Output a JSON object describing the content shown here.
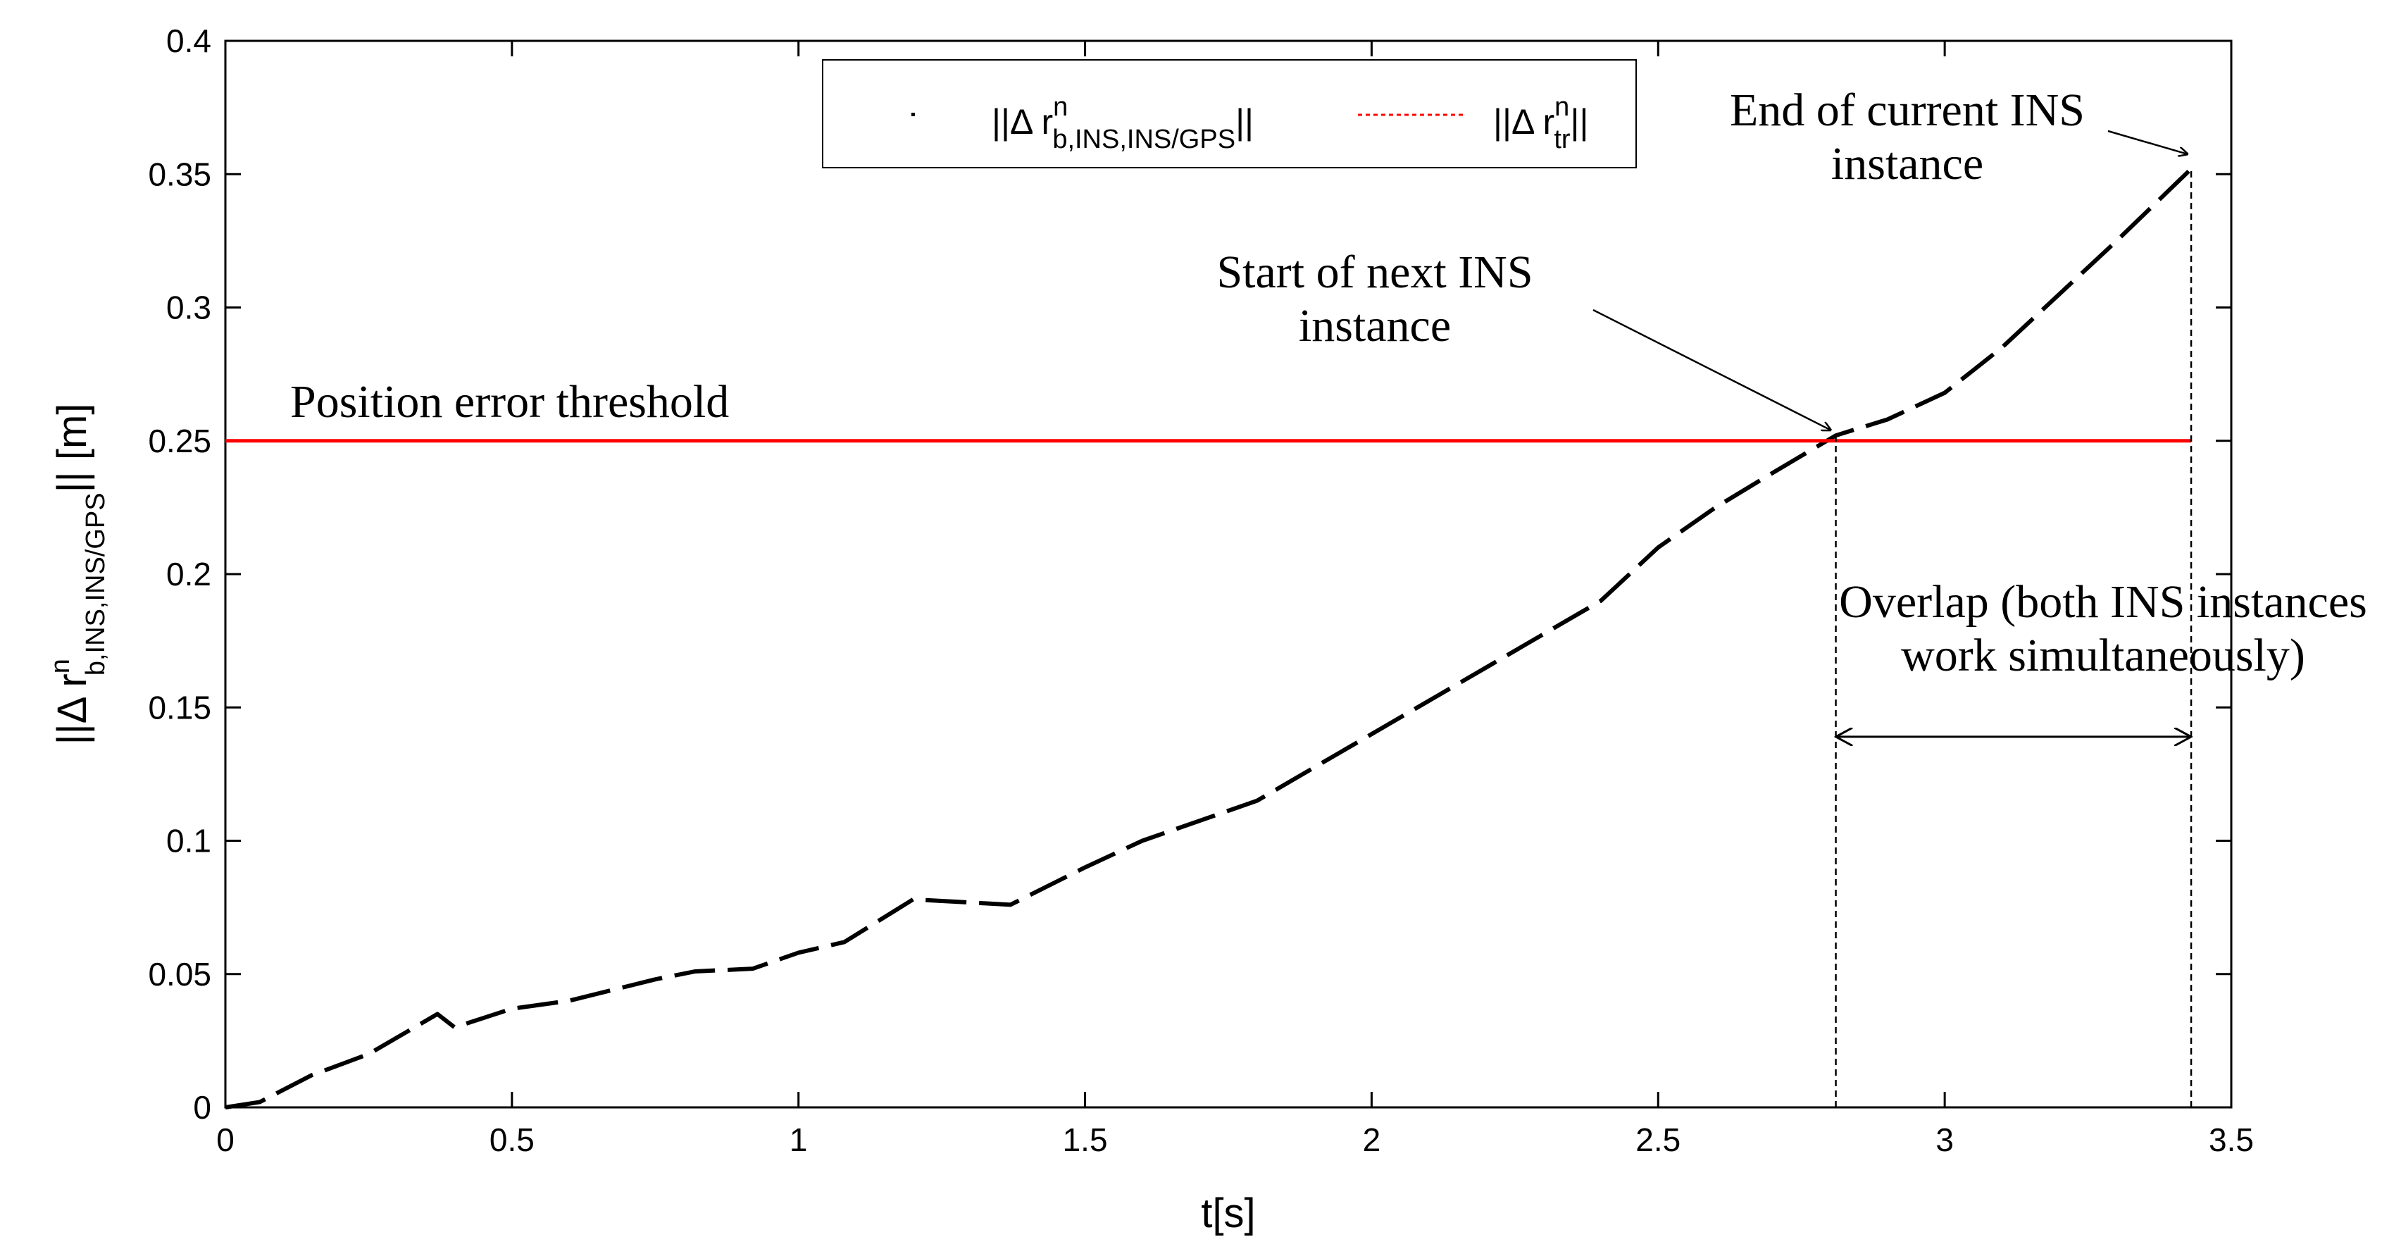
{
  "chart_data": {
    "type": "line",
    "title": "",
    "xlabel": "t[s]",
    "ylabel": {
      "main": "||Δ r",
      "sup": "n",
      "sub": "b,INS,INS/GPS",
      "end": "|| [m]"
    },
    "xlim": [
      0,
      3.5
    ],
    "ylim": [
      0,
      0.4
    ],
    "x_ticks": [
      0,
      0.5,
      1,
      1.5,
      2,
      2.5,
      3,
      3.5
    ],
    "x_tick_labels": [
      "0",
      "0.5",
      "1",
      "1.5",
      "2",
      "2.5",
      "3",
      "3.5"
    ],
    "y_ticks": [
      0,
      0.05,
      0.1,
      0.15,
      0.2,
      0.25,
      0.3,
      0.35,
      0.4
    ],
    "y_tick_labels": [
      "0",
      "0.05",
      "0.1",
      "0.15",
      "0.2",
      "0.25",
      "0.3",
      "0.35",
      "0.4"
    ],
    "grid": false,
    "legend_position": "top-center",
    "series": [
      {
        "name": "||Δ r^n_b,INS,INS/GPS||",
        "legend": {
          "main": "||Δ r",
          "sup": "n",
          "sub": "b,INS,INS/GPS",
          "end": "||"
        },
        "color": "#000000",
        "style": "dashed",
        "x": [
          0,
          0.06,
          0.15,
          0.25,
          0.37,
          0.4,
          0.5,
          0.6,
          0.75,
          0.82,
          0.92,
          1.0,
          1.08,
          1.2,
          1.37,
          1.5,
          1.6,
          1.8,
          2.0,
          2.2,
          2.4,
          2.5,
          2.6,
          2.7,
          2.81,
          2.9,
          3.0,
          3.1,
          3.2,
          3.3,
          3.43
        ],
        "y": [
          0,
          0.002,
          0.012,
          0.02,
          0.035,
          0.03,
          0.037,
          0.04,
          0.048,
          0.051,
          0.052,
          0.058,
          0.062,
          0.078,
          0.076,
          0.09,
          0.1,
          0.115,
          0.14,
          0.165,
          0.19,
          0.21,
          0.225,
          0.238,
          0.252,
          0.258,
          0.268,
          0.285,
          0.305,
          0.325,
          0.352
        ]
      },
      {
        "name": "||Δ r^n_tr||",
        "legend": {
          "main": "||Δ r",
          "sup": "n",
          "sub": "tr",
          "end": "||"
        },
        "color": "#ff0000",
        "style": "solid",
        "x": [
          0,
          3.43
        ],
        "y": [
          0.25,
          0.25
        ]
      }
    ],
    "vlines": [
      {
        "x": 2.81,
        "y0": 0,
        "y1": 0.252
      },
      {
        "x": 3.43,
        "y0": 0,
        "y1": 0.352
      }
    ],
    "annotations": [
      {
        "lines": [
          "Position error threshold"
        ]
      },
      {
        "lines": [
          "Start of next INS",
          "instance"
        ],
        "arrow_to": [
          2.81,
          0.252
        ]
      },
      {
        "lines": [
          "End of current INS",
          "instance"
        ],
        "arrow_to": [
          3.43,
          0.356
        ]
      },
      {
        "lines": [
          "Overlap (both INS instances",
          "work simultaneously)"
        ],
        "span": [
          2.81,
          3.43
        ],
        "y": 0.139
      }
    ]
  }
}
